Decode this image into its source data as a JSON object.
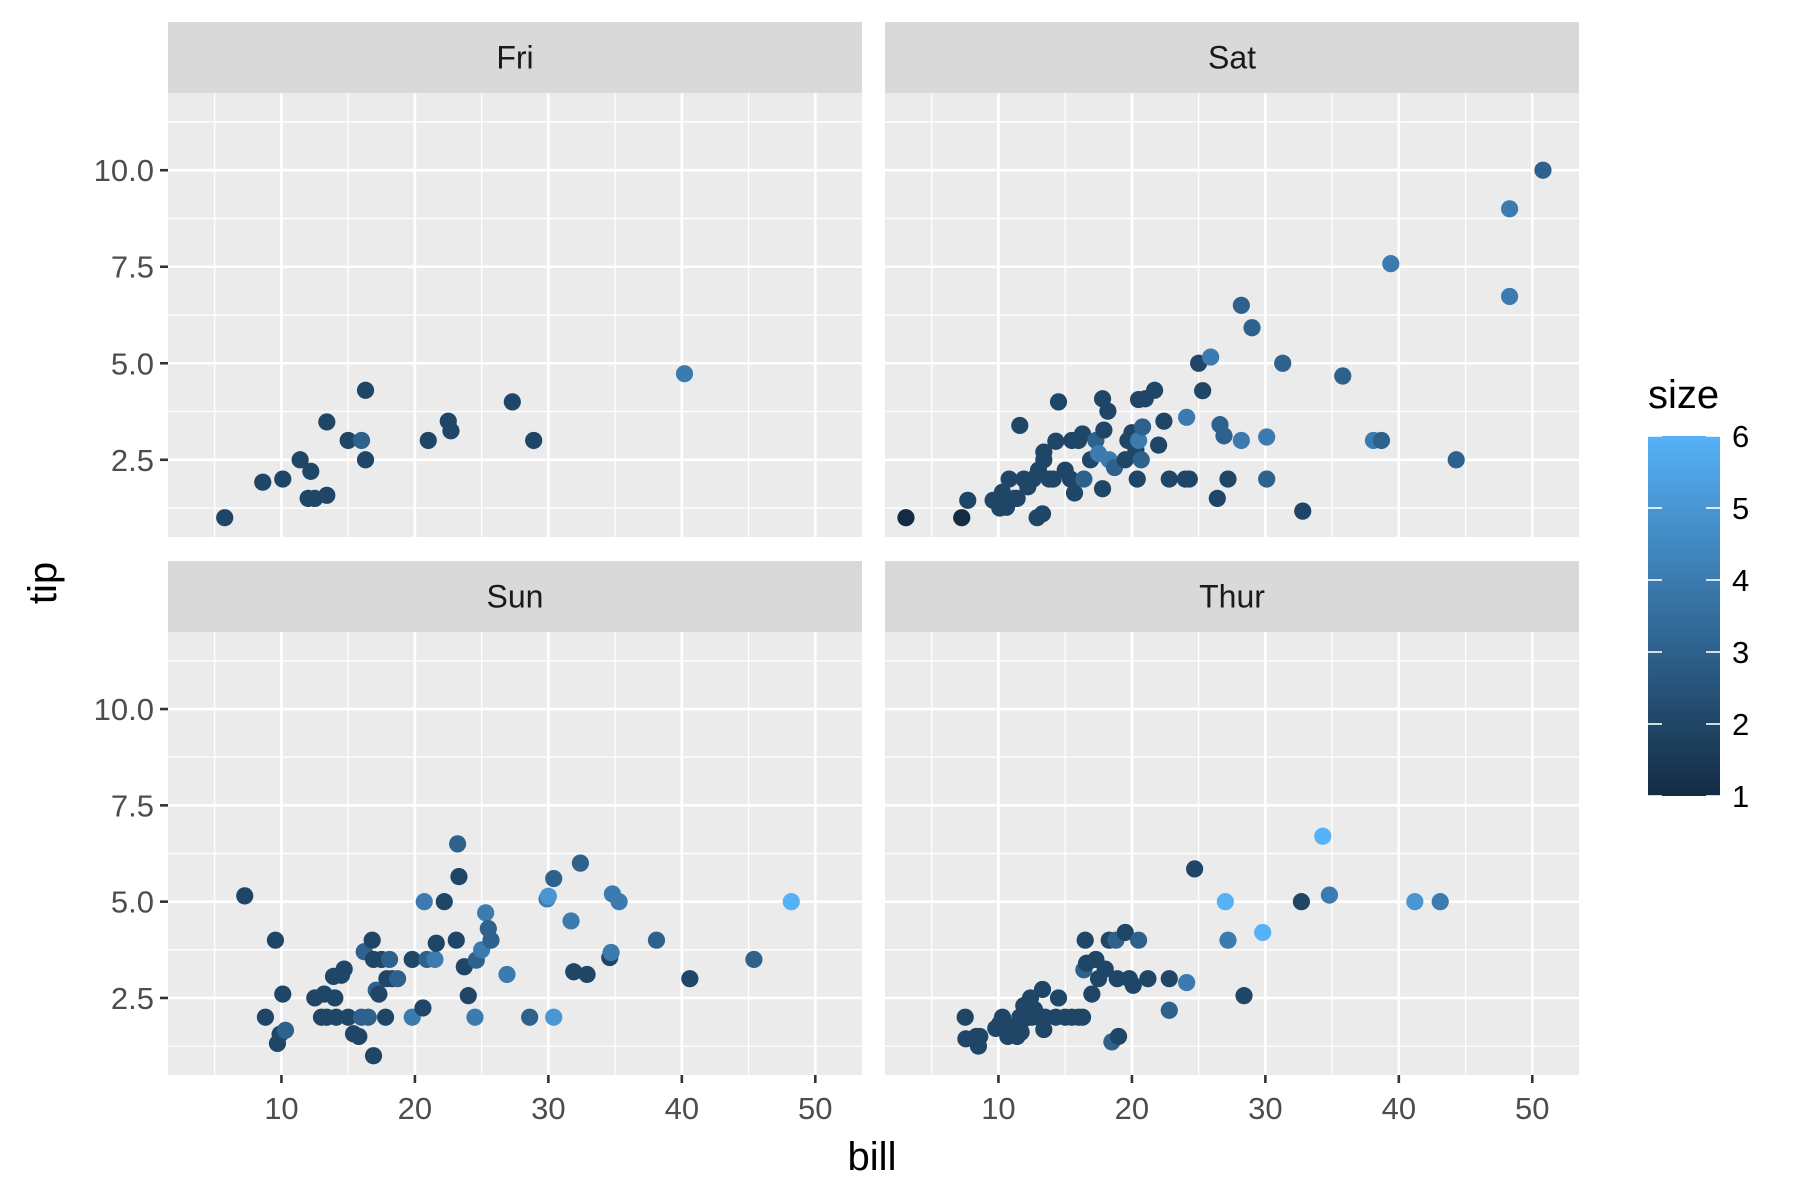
{
  "chart_data": {
    "type": "scatter",
    "xlabel": "bill",
    "ylabel": "tip",
    "xlim": [
      1.5,
      53.5
    ],
    "ylim": [
      0.5,
      12
    ],
    "x_ticks": [
      10,
      20,
      30,
      40,
      50
    ],
    "x_tick_labels": [
      "10",
      "20",
      "30",
      "40",
      "50"
    ],
    "y_ticks": [
      2.5,
      5.0,
      7.5,
      10.0
    ],
    "y_tick_labels": [
      "2.5",
      "5.0",
      "7.5",
      "10.0"
    ],
    "grid": true,
    "legend": {
      "title": "size",
      "type": "colorbar",
      "placement": "right",
      "range": [
        1,
        6
      ],
      "ticks": [
        1,
        2,
        3,
        4,
        5,
        6
      ],
      "tick_labels": [
        "1",
        "2",
        "3",
        "4",
        "5",
        "6"
      ],
      "color_low": "#132B43",
      "color_high": "#56B1F7"
    },
    "facets": [
      {
        "name": "Fri",
        "points": [
          [
            5.75,
            1.0,
            2
          ],
          [
            8.6,
            1.92,
            2
          ],
          [
            10.1,
            2.0,
            2
          ],
          [
            11.4,
            2.5,
            2
          ],
          [
            12.2,
            2.2,
            2
          ],
          [
            12.0,
            1.5,
            2
          ],
          [
            12.5,
            1.5,
            2
          ],
          [
            13.4,
            1.58,
            2
          ],
          [
            13.4,
            3.48,
            2
          ],
          [
            15.0,
            3.0,
            2
          ],
          [
            16.0,
            3.0,
            3
          ],
          [
            16.3,
            2.5,
            2
          ],
          [
            16.3,
            4.3,
            2
          ],
          [
            21.0,
            3.0,
            2
          ],
          [
            22.5,
            3.5,
            2
          ],
          [
            22.7,
            3.25,
            2
          ],
          [
            27.3,
            4.0,
            2
          ],
          [
            28.9,
            3.0,
            2
          ],
          [
            40.2,
            4.73,
            4
          ]
        ]
      },
      {
        "name": "Sat",
        "points": [
          [
            3.07,
            1.0,
            1
          ],
          [
            7.25,
            1.0,
            1
          ],
          [
            7.7,
            1.45,
            2
          ],
          [
            9.6,
            1.45,
            2
          ],
          [
            10.3,
            1.66,
            2
          ],
          [
            10.1,
            1.25,
            2
          ],
          [
            10.6,
            1.27,
            2
          ],
          [
            10.8,
            2.0,
            2
          ],
          [
            11.2,
            1.5,
            2
          ],
          [
            11.4,
            1.5,
            2
          ],
          [
            11.6,
            3.39,
            2
          ],
          [
            11.9,
            2.0,
            2
          ],
          [
            12.2,
            1.8,
            2
          ],
          [
            12.6,
            2.0,
            2
          ],
          [
            12.9,
            1.0,
            2
          ],
          [
            13.3,
            1.1,
            2
          ],
          [
            13.0,
            2.23,
            2
          ],
          [
            13.4,
            2.5,
            2
          ],
          [
            13.4,
            2.7,
            2
          ],
          [
            13.8,
            2.0,
            2
          ],
          [
            14.1,
            2.0,
            2
          ],
          [
            14.3,
            2.98,
            2
          ],
          [
            14.5,
            4.0,
            2
          ],
          [
            15.0,
            2.23,
            2
          ],
          [
            15.4,
            2.0,
            2
          ],
          [
            15.5,
            3.0,
            2
          ],
          [
            15.7,
            1.64,
            2
          ],
          [
            16.0,
            3.0,
            2
          ],
          [
            16.3,
            3.17,
            2
          ],
          [
            16.4,
            2.0,
            3
          ],
          [
            16.9,
            2.5,
            2
          ],
          [
            17.3,
            3.0,
            3
          ],
          [
            17.5,
            2.66,
            4
          ],
          [
            17.8,
            1.75,
            2
          ],
          [
            17.9,
            3.27,
            2
          ],
          [
            17.8,
            4.08,
            2
          ],
          [
            18.2,
            3.76,
            2
          ],
          [
            18.3,
            2.5,
            4
          ],
          [
            18.7,
            2.3,
            3
          ],
          [
            19.5,
            2.5,
            2
          ],
          [
            19.7,
            3.0,
            2
          ],
          [
            20.0,
            3.2,
            2
          ],
          [
            20.3,
            2.76,
            2
          ],
          [
            20.4,
            2.0,
            2
          ],
          [
            20.5,
            3.0,
            4
          ],
          [
            20.5,
            4.06,
            2
          ],
          [
            20.7,
            2.5,
            3
          ],
          [
            20.8,
            3.35,
            3
          ],
          [
            21.0,
            4.08,
            2
          ],
          [
            21.7,
            4.3,
            2
          ],
          [
            22.0,
            2.88,
            2
          ],
          [
            22.4,
            3.5,
            2
          ],
          [
            22.8,
            2.0,
            2
          ],
          [
            24.0,
            2.0,
            2
          ],
          [
            24.1,
            3.6,
            4
          ],
          [
            24.3,
            2.0,
            2
          ],
          [
            25.0,
            5.0,
            2
          ],
          [
            25.3,
            4.29,
            2
          ],
          [
            25.9,
            5.16,
            4
          ],
          [
            26.4,
            1.5,
            2
          ],
          [
            26.6,
            3.41,
            3
          ],
          [
            26.9,
            3.12,
            3
          ],
          [
            27.2,
            2.0,
            2
          ],
          [
            28.2,
            6.5,
            3
          ],
          [
            28.2,
            3.0,
            4
          ],
          [
            29.0,
            5.92,
            3
          ],
          [
            30.1,
            2.0,
            3
          ],
          [
            30.1,
            3.09,
            4
          ],
          [
            31.3,
            5.0,
            3
          ],
          [
            32.8,
            1.17,
            2
          ],
          [
            35.8,
            4.67,
            3
          ],
          [
            38.1,
            3.0,
            4
          ],
          [
            38.7,
            3.0,
            3
          ],
          [
            39.4,
            7.58,
            4
          ],
          [
            44.3,
            2.5,
            3
          ],
          [
            48.3,
            9.0,
            4
          ],
          [
            48.3,
            6.73,
            4
          ],
          [
            50.8,
            10.0,
            3
          ]
        ]
      },
      {
        "name": "Sun",
        "points": [
          [
            7.25,
            5.15,
            2
          ],
          [
            8.8,
            2.0,
            2
          ],
          [
            9.55,
            4.0,
            2
          ],
          [
            9.7,
            1.32,
            2
          ],
          [
            9.9,
            1.56,
            2
          ],
          [
            10.1,
            2.6,
            2
          ],
          [
            10.3,
            1.66,
            3
          ],
          [
            12.5,
            2.5,
            2
          ],
          [
            13.0,
            2.0,
            2
          ],
          [
            13.2,
            2.6,
            2
          ],
          [
            13.4,
            2.0,
            2
          ],
          [
            13.9,
            3.06,
            2
          ],
          [
            14.0,
            2.5,
            2
          ],
          [
            14.1,
            2.0,
            2
          ],
          [
            14.5,
            3.09,
            2
          ],
          [
            14.7,
            3.25,
            2
          ],
          [
            15.0,
            2.0,
            2
          ],
          [
            15.4,
            1.57,
            2
          ],
          [
            15.8,
            1.5,
            2
          ],
          [
            16.0,
            2.0,
            3
          ],
          [
            16.2,
            3.7,
            3
          ],
          [
            16.5,
            2.0,
            3
          ],
          [
            16.8,
            4.0,
            2
          ],
          [
            16.9,
            3.5,
            2
          ],
          [
            16.9,
            1.0,
            2
          ],
          [
            17.1,
            2.7,
            3
          ],
          [
            17.3,
            2.6,
            2
          ],
          [
            17.5,
            3.5,
            2
          ],
          [
            17.8,
            2.0,
            2
          ],
          [
            17.9,
            3.0,
            2
          ],
          [
            18.1,
            3.5,
            3
          ],
          [
            18.3,
            3.0,
            2
          ],
          [
            18.7,
            3.0,
            3
          ],
          [
            19.8,
            2.0,
            4
          ],
          [
            19.8,
            3.5,
            2
          ],
          [
            20.6,
            2.24,
            2
          ],
          [
            20.7,
            5.0,
            4
          ],
          [
            20.9,
            3.5,
            3
          ],
          [
            21.5,
            3.5,
            4
          ],
          [
            21.6,
            3.92,
            2
          ],
          [
            22.2,
            5.0,
            2
          ],
          [
            23.1,
            4.0,
            2
          ],
          [
            23.2,
            6.5,
            3
          ],
          [
            23.3,
            5.65,
            2
          ],
          [
            23.7,
            3.31,
            2
          ],
          [
            24.0,
            2.56,
            2
          ],
          [
            24.5,
            2.0,
            4
          ],
          [
            24.6,
            3.48,
            3
          ],
          [
            25.0,
            3.75,
            4
          ],
          [
            25.3,
            4.71,
            4
          ],
          [
            25.5,
            4.3,
            3
          ],
          [
            25.7,
            4.0,
            3
          ],
          [
            26.9,
            3.11,
            4
          ],
          [
            28.6,
            2.0,
            3
          ],
          [
            29.9,
            5.07,
            4
          ],
          [
            30.0,
            5.14,
            5
          ],
          [
            30.4,
            2.0,
            5
          ],
          [
            30.4,
            5.6,
            3
          ],
          [
            31.7,
            4.5,
            4
          ],
          [
            31.9,
            3.18,
            2
          ],
          [
            32.4,
            6.0,
            3
          ],
          [
            32.9,
            3.11,
            2
          ],
          [
            34.6,
            3.55,
            2
          ],
          [
            34.7,
            3.68,
            4
          ],
          [
            34.8,
            5.2,
            4
          ],
          [
            35.3,
            5.0,
            4
          ],
          [
            38.1,
            4.0,
            3
          ],
          [
            40.6,
            3.0,
            2
          ],
          [
            45.4,
            3.5,
            3
          ],
          [
            48.2,
            5.0,
            6
          ]
        ]
      },
      {
        "name": "Thur",
        "points": [
          [
            7.51,
            2.0,
            2
          ],
          [
            7.56,
            1.44,
            2
          ],
          [
            8.35,
            1.5,
            2
          ],
          [
            8.5,
            1.25,
            2
          ],
          [
            8.6,
            1.5,
            2
          ],
          [
            9.8,
            1.71,
            2
          ],
          [
            10.1,
            1.83,
            2
          ],
          [
            10.3,
            2.0,
            2
          ],
          [
            10.7,
            1.5,
            2
          ],
          [
            11.0,
            1.74,
            2
          ],
          [
            11.4,
            1.5,
            2
          ],
          [
            11.6,
            2.0,
            2
          ],
          [
            11.7,
            1.61,
            2
          ],
          [
            11.9,
            2.3,
            2
          ],
          [
            12.0,
            1.97,
            2
          ],
          [
            12.4,
            2.5,
            2
          ],
          [
            12.5,
            2.0,
            2
          ],
          [
            12.7,
            2.2,
            2
          ],
          [
            13.0,
            2.0,
            2
          ],
          [
            13.3,
            2.72,
            2
          ],
          [
            13.4,
            1.68,
            2
          ],
          [
            13.5,
            2.0,
            2
          ],
          [
            14.3,
            2.0,
            2
          ],
          [
            14.5,
            2.5,
            2
          ],
          [
            15.0,
            2.0,
            2
          ],
          [
            15.5,
            2.0,
            2
          ],
          [
            16.0,
            2.0,
            2
          ],
          [
            16.3,
            2.0,
            2
          ],
          [
            16.4,
            3.23,
            3
          ],
          [
            16.5,
            4.0,
            2
          ],
          [
            16.6,
            3.4,
            2
          ],
          [
            17.0,
            2.6,
            2
          ],
          [
            17.3,
            3.5,
            2
          ],
          [
            17.5,
            3.0,
            2
          ],
          [
            18.0,
            3.25,
            2
          ],
          [
            18.3,
            4.0,
            2
          ],
          [
            18.5,
            1.36,
            3
          ],
          [
            18.8,
            4.0,
            3
          ],
          [
            18.9,
            3.0,
            2
          ],
          [
            19.0,
            1.5,
            2
          ],
          [
            19.5,
            4.2,
            2
          ],
          [
            19.8,
            3.0,
            2
          ],
          [
            20.1,
            2.83,
            2
          ],
          [
            20.5,
            4.0,
            3
          ],
          [
            21.2,
            3.0,
            2
          ],
          [
            22.8,
            3.0,
            2
          ],
          [
            22.8,
            2.18,
            3
          ],
          [
            24.1,
            2.9,
            4
          ],
          [
            24.7,
            5.85,
            2
          ],
          [
            27.0,
            5.0,
            6
          ],
          [
            27.2,
            4.0,
            4
          ],
          [
            28.4,
            2.56,
            2
          ],
          [
            29.8,
            4.2,
            6
          ],
          [
            32.7,
            5.0,
            2
          ],
          [
            34.3,
            6.7,
            6
          ],
          [
            34.8,
            5.17,
            4
          ],
          [
            41.2,
            5.0,
            5
          ],
          [
            43.1,
            5.0,
            4
          ]
        ]
      }
    ]
  }
}
